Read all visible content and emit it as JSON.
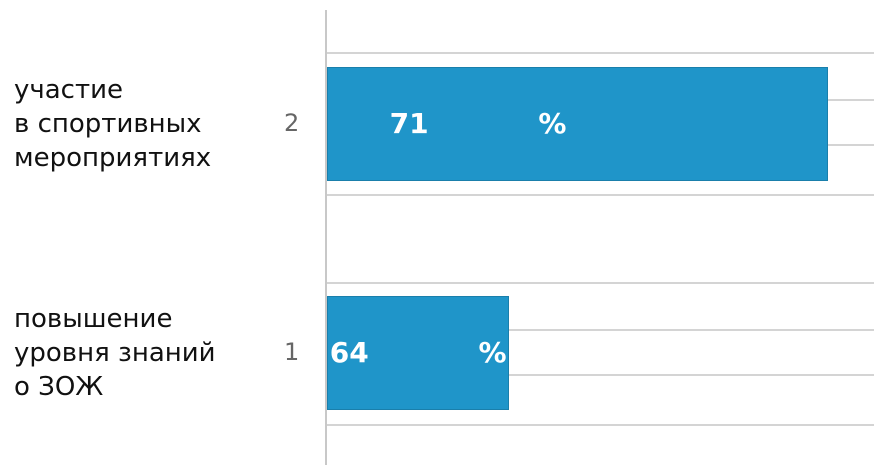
{
  "chart_data": {
    "type": "barh",
    "categories": [
      "повышение\nуровня знаний\nо ЗОЖ",
      "участие\nв спортивных\nмероприятиях"
    ],
    "category_numbers": [
      "1",
      "2"
    ],
    "values": [
      64,
      71
    ],
    "value_labels": [
      "64 %",
      "71 %"
    ],
    "color": "#1f95c9",
    "xlim": [
      60,
      72
    ]
  }
}
